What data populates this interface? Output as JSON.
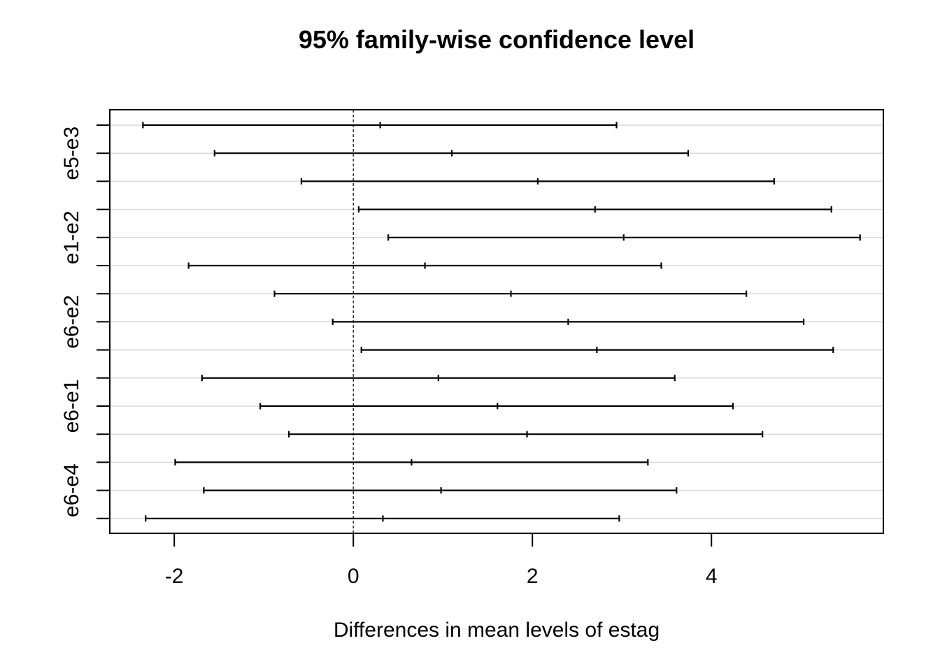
{
  "chart_data": {
    "type": "interval",
    "title": "95% family-wise confidence level",
    "xlabel": "Differences in mean levels of estag",
    "ylabel": "",
    "xlim": [
      -2.72,
      5.92
    ],
    "x_ticks": [
      -2,
      0,
      2,
      4
    ],
    "x_tick_labels": [
      "-2",
      "0",
      "2",
      "4"
    ],
    "reference_line": 0,
    "grid": "horizontal",
    "visible_y_labels": [
      {
        "index": 1,
        "label": "e5-e3"
      },
      {
        "index": 4,
        "label": "e1-e2"
      },
      {
        "index": 7,
        "label": "e6-e2"
      },
      {
        "index": 10,
        "label": "e6-e1"
      },
      {
        "index": 13,
        "label": "e6-e4"
      }
    ],
    "series": [
      {
        "lower": -2.35,
        "estimate": 0.3,
        "upper": 2.94
      },
      {
        "lower": -1.55,
        "estimate": 1.1,
        "upper": 3.74
      },
      {
        "lower": -0.58,
        "estimate": 2.06,
        "upper": 4.7
      },
      {
        "lower": 0.06,
        "estimate": 2.7,
        "upper": 5.34
      },
      {
        "lower": 0.39,
        "estimate": 3.02,
        "upper": 5.66
      },
      {
        "lower": -1.84,
        "estimate": 0.8,
        "upper": 3.44
      },
      {
        "lower": -0.88,
        "estimate": 1.76,
        "upper": 4.39
      },
      {
        "lower": -0.23,
        "estimate": 2.4,
        "upper": 5.03
      },
      {
        "lower": 0.09,
        "estimate": 2.72,
        "upper": 5.36
      },
      {
        "lower": -1.69,
        "estimate": 0.95,
        "upper": 3.59
      },
      {
        "lower": -1.04,
        "estimate": 1.61,
        "upper": 4.24
      },
      {
        "lower": -0.72,
        "estimate": 1.94,
        "upper": 4.57
      },
      {
        "lower": -1.99,
        "estimate": 0.65,
        "upper": 3.29
      },
      {
        "lower": -1.67,
        "estimate": 0.98,
        "upper": 3.61
      },
      {
        "lower": -2.32,
        "estimate": 0.33,
        "upper": 2.97
      }
    ]
  }
}
